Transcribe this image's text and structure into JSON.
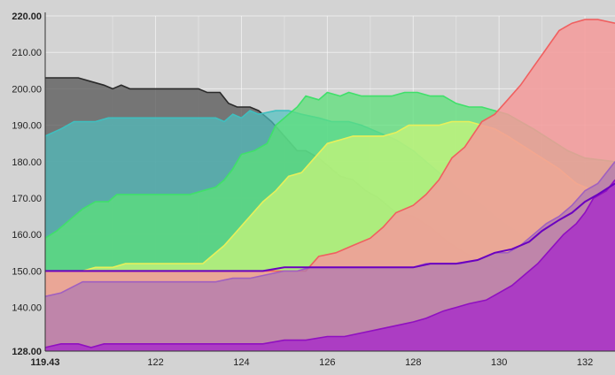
{
  "chart_data": {
    "type": "area",
    "title": "",
    "xlabel": "",
    "ylabel": "",
    "xlim": [
      119.43,
      132.7
    ],
    "ylim": [
      128,
      220
    ],
    "grid": true,
    "legend": "none",
    "y_ticks": [
      "128.00",
      "140.00",
      "150.00",
      "160.00",
      "170.00",
      "180.00",
      "190.00",
      "200.00",
      "210.00",
      "220.00"
    ],
    "x_ticks": [
      "119.43",
      "122",
      "124",
      "126",
      "128",
      "130",
      "132"
    ],
    "series": [
      {
        "color": "#555555",
        "stroke": "#2a2a2a",
        "opacity": 0.75,
        "points": [
          [
            119.43,
            203
          ],
          [
            120.2,
            203
          ],
          [
            120.5,
            202
          ],
          [
            120.8,
            201
          ],
          [
            121.0,
            200
          ],
          [
            121.2,
            201
          ],
          [
            121.4,
            200
          ],
          [
            122.0,
            200
          ],
          [
            122.5,
            200
          ],
          [
            122.8,
            200
          ],
          [
            123.0,
            200
          ],
          [
            123.2,
            199
          ],
          [
            123.5,
            199
          ],
          [
            123.7,
            196
          ],
          [
            123.9,
            195
          ],
          [
            124.2,
            195
          ],
          [
            124.4,
            194
          ],
          [
            124.7,
            191
          ],
          [
            125.0,
            187
          ],
          [
            125.3,
            183
          ],
          [
            125.5,
            183
          ],
          [
            125.8,
            181
          ],
          [
            126.1,
            178
          ],
          [
            126.3,
            176
          ],
          [
            126.6,
            175
          ],
          [
            126.9,
            172
          ],
          [
            127.2,
            170
          ],
          [
            127.6,
            166
          ],
          [
            128.0,
            165
          ],
          [
            128.4,
            162
          ],
          [
            128.8,
            158
          ],
          [
            129.2,
            155
          ],
          [
            129.7,
            152
          ],
          [
            130.1,
            150
          ],
          [
            130.6,
            150
          ],
          [
            131.0,
            150
          ],
          [
            131.5,
            150
          ],
          [
            132.0,
            150
          ],
          [
            132.7,
            150
          ]
        ]
      },
      {
        "color": "#4fc0c0",
        "stroke": "#3fbfbf",
        "opacity": 0.7,
        "points": [
          [
            119.43,
            187
          ],
          [
            119.8,
            189
          ],
          [
            120.1,
            191
          ],
          [
            120.6,
            191
          ],
          [
            120.9,
            192
          ],
          [
            121.5,
            192
          ],
          [
            122.0,
            192
          ],
          [
            122.5,
            192
          ],
          [
            123.0,
            192
          ],
          [
            123.4,
            192
          ],
          [
            123.6,
            191
          ],
          [
            123.8,
            193
          ],
          [
            124.0,
            192
          ],
          [
            124.2,
            194
          ],
          [
            124.4,
            193
          ],
          [
            124.8,
            194
          ],
          [
            125.1,
            194
          ],
          [
            125.4,
            193
          ],
          [
            125.8,
            192
          ],
          [
            126.1,
            191
          ],
          [
            126.5,
            191
          ],
          [
            126.8,
            190
          ],
          [
            127.2,
            188
          ],
          [
            127.6,
            186
          ],
          [
            128.0,
            183
          ],
          [
            128.4,
            179
          ],
          [
            128.8,
            175
          ],
          [
            129.2,
            171
          ],
          [
            129.6,
            168
          ],
          [
            130.0,
            164
          ],
          [
            130.5,
            160
          ],
          [
            131.0,
            155
          ],
          [
            131.5,
            152
          ],
          [
            132.0,
            150
          ],
          [
            132.7,
            150
          ]
        ]
      },
      {
        "color": "#5ce07a",
        "stroke": "#3fe06a",
        "opacity": 0.75,
        "points": [
          [
            119.43,
            159
          ],
          [
            119.7,
            161
          ],
          [
            120.0,
            164
          ],
          [
            120.3,
            167
          ],
          [
            120.6,
            169
          ],
          [
            120.9,
            169
          ],
          [
            121.1,
            171
          ],
          [
            121.5,
            171
          ],
          [
            122.0,
            171
          ],
          [
            122.5,
            171
          ],
          [
            122.8,
            171
          ],
          [
            123.1,
            172
          ],
          [
            123.4,
            173
          ],
          [
            123.6,
            175
          ],
          [
            123.8,
            178
          ],
          [
            124.0,
            182
          ],
          [
            124.3,
            183
          ],
          [
            124.6,
            185
          ],
          [
            124.8,
            190
          ],
          [
            125.1,
            193
          ],
          [
            125.3,
            195
          ],
          [
            125.5,
            198
          ],
          [
            125.8,
            197
          ],
          [
            126.0,
            199
          ],
          [
            126.3,
            198
          ],
          [
            126.5,
            199
          ],
          [
            126.8,
            198
          ],
          [
            127.2,
            198
          ],
          [
            127.5,
            198
          ],
          [
            127.8,
            199
          ],
          [
            128.1,
            199
          ],
          [
            128.4,
            198
          ],
          [
            128.7,
            198
          ],
          [
            129.0,
            196
          ],
          [
            129.3,
            195
          ],
          [
            129.6,
            195
          ],
          [
            129.9,
            194
          ],
          [
            130.2,
            193
          ],
          [
            130.5,
            191
          ],
          [
            130.8,
            189
          ],
          [
            131.2,
            186
          ],
          [
            131.6,
            183
          ],
          [
            132.0,
            181
          ],
          [
            132.7,
            180
          ]
        ]
      },
      {
        "color": "#c8f47a",
        "stroke": "#e8f05a",
        "opacity": 0.75,
        "points": [
          [
            119.43,
            150
          ],
          [
            120.0,
            150
          ],
          [
            120.3,
            150
          ],
          [
            120.6,
            151
          ],
          [
            121.0,
            151
          ],
          [
            121.3,
            152
          ],
          [
            121.8,
            152
          ],
          [
            122.3,
            152
          ],
          [
            122.8,
            152
          ],
          [
            123.1,
            152
          ],
          [
            123.3,
            154
          ],
          [
            123.6,
            157
          ],
          [
            123.9,
            161
          ],
          [
            124.2,
            165
          ],
          [
            124.5,
            169
          ],
          [
            124.8,
            172
          ],
          [
            125.1,
            176
          ],
          [
            125.4,
            177
          ],
          [
            125.7,
            181
          ],
          [
            126.0,
            185
          ],
          [
            126.3,
            186
          ],
          [
            126.6,
            187
          ],
          [
            127.0,
            187
          ],
          [
            127.3,
            187
          ],
          [
            127.6,
            188
          ],
          [
            127.9,
            190
          ],
          [
            128.2,
            190
          ],
          [
            128.6,
            190
          ],
          [
            128.9,
            191
          ],
          [
            129.3,
            191
          ],
          [
            129.6,
            190
          ],
          [
            129.9,
            189
          ],
          [
            130.2,
            187
          ],
          [
            130.6,
            184
          ],
          [
            131.0,
            181
          ],
          [
            131.4,
            178
          ],
          [
            131.8,
            174
          ],
          [
            132.2,
            172
          ],
          [
            132.7,
            170
          ]
        ]
      },
      {
        "color": "#f49a9a",
        "stroke": "#f06060",
        "opacity": 0.85,
        "points": [
          [
            119.43,
            150
          ],
          [
            125.5,
            150
          ],
          [
            125.8,
            154
          ],
          [
            126.2,
            155
          ],
          [
            126.6,
            157
          ],
          [
            127.0,
            159
          ],
          [
            127.3,
            162
          ],
          [
            127.6,
            166
          ],
          [
            128.0,
            168
          ],
          [
            128.3,
            171
          ],
          [
            128.6,
            175
          ],
          [
            128.9,
            181
          ],
          [
            129.2,
            184
          ],
          [
            129.6,
            191
          ],
          [
            129.9,
            193
          ],
          [
            130.2,
            197
          ],
          [
            130.5,
            201
          ],
          [
            130.8,
            206
          ],
          [
            131.1,
            211
          ],
          [
            131.4,
            216
          ],
          [
            131.7,
            218
          ],
          [
            132.0,
            219
          ],
          [
            132.3,
            219
          ],
          [
            132.7,
            218
          ]
        ]
      },
      {
        "color": "#b07ab0",
        "stroke": "#a060c0",
        "opacity": 0.75,
        "points": [
          [
            119.43,
            143
          ],
          [
            119.8,
            144
          ],
          [
            120.3,
            147
          ],
          [
            121.0,
            147
          ],
          [
            122.0,
            147
          ],
          [
            122.8,
            147
          ],
          [
            123.4,
            147
          ],
          [
            123.8,
            148
          ],
          [
            124.2,
            148
          ],
          [
            124.6,
            149
          ],
          [
            125.0,
            150
          ],
          [
            125.3,
            150
          ],
          [
            125.6,
            151
          ],
          [
            126.0,
            151
          ],
          [
            126.5,
            151
          ],
          [
            127.0,
            151
          ],
          [
            127.5,
            151
          ],
          [
            128.0,
            151
          ],
          [
            128.3,
            152
          ],
          [
            128.7,
            152
          ],
          [
            129.1,
            152
          ],
          [
            129.5,
            153
          ],
          [
            129.9,
            155
          ],
          [
            130.2,
            155
          ],
          [
            130.5,
            157
          ],
          [
            130.8,
            160
          ],
          [
            131.1,
            163
          ],
          [
            131.4,
            165
          ],
          [
            131.7,
            168
          ],
          [
            132.0,
            172
          ],
          [
            132.3,
            174
          ],
          [
            132.5,
            177
          ],
          [
            132.7,
            180
          ]
        ]
      },
      {
        "color": "#a830c8",
        "stroke": "#9010c0",
        "opacity": 0.85,
        "points": [
          [
            119.43,
            129
          ],
          [
            119.8,
            130
          ],
          [
            120.2,
            130
          ],
          [
            120.5,
            129
          ],
          [
            120.8,
            130
          ],
          [
            121.5,
            130
          ],
          [
            122.0,
            130
          ],
          [
            122.5,
            130
          ],
          [
            123.0,
            130
          ],
          [
            123.5,
            130
          ],
          [
            124.0,
            130
          ],
          [
            124.5,
            130
          ],
          [
            125.0,
            131
          ],
          [
            125.5,
            131
          ],
          [
            126.0,
            132
          ],
          [
            126.4,
            132
          ],
          [
            126.8,
            133
          ],
          [
            127.2,
            134
          ],
          [
            127.6,
            135
          ],
          [
            128.0,
            136
          ],
          [
            128.3,
            137
          ],
          [
            128.7,
            139
          ],
          [
            129.0,
            140
          ],
          [
            129.3,
            141
          ],
          [
            129.7,
            142
          ],
          [
            130.0,
            144
          ],
          [
            130.3,
            146
          ],
          [
            130.6,
            149
          ],
          [
            130.9,
            152
          ],
          [
            131.2,
            156
          ],
          [
            131.5,
            160
          ],
          [
            131.8,
            163
          ],
          [
            132.0,
            166
          ],
          [
            132.2,
            170
          ],
          [
            132.5,
            172
          ],
          [
            132.7,
            175
          ]
        ]
      }
    ],
    "purple_line": {
      "stroke": "#6a00c0",
      "points": [
        [
          119.43,
          150
        ],
        [
          124.5,
          150
        ],
        [
          125.0,
          151
        ],
        [
          126.0,
          151
        ],
        [
          127.0,
          151
        ],
        [
          128.0,
          151
        ],
        [
          128.4,
          152
        ],
        [
          129.0,
          152
        ],
        [
          129.5,
          153
        ],
        [
          129.9,
          155
        ],
        [
          130.3,
          156
        ],
        [
          130.7,
          158
        ],
        [
          131.0,
          161
        ],
        [
          131.4,
          164
        ],
        [
          131.7,
          166
        ],
        [
          132.0,
          169
        ],
        [
          132.3,
          171
        ],
        [
          132.7,
          174
        ]
      ]
    }
  }
}
